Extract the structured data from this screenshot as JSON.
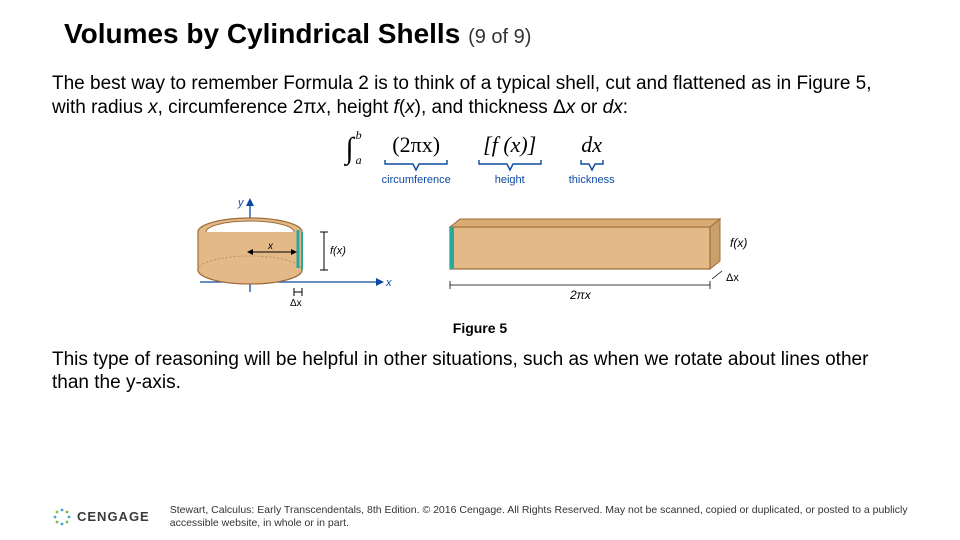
{
  "title": {
    "main": "Volumes by Cylindrical Shells",
    "sub": "(9 of 9)"
  },
  "para1_html": "The best way to remember Formula 2 is to think of a typical shell, cut and flattened as in Figure 5, with radius <span class='italic'>x</span>, circumference 2π<span class='italic'>x</span>, height <span class='italic'>f</span>(<span class='italic'>x</span>), and thickness Δ<span class='italic'>x</span> or <span class='italic'>dx</span>:",
  "formula": {
    "int_lower": "a",
    "int_upper": "b",
    "circ_expr": "(2πx)",
    "circ_label": "circumference",
    "height_expr": "[f (x)]",
    "height_label": "height",
    "thick_expr": "dx",
    "thick_label": "thickness",
    "brace_color": "#0b4aa2",
    "label_color": "#0b4aa2"
  },
  "figure": {
    "caption": "Figure 5",
    "shell": {
      "fill": "#e3b987",
      "stroke": "#9c6b3a",
      "axis_color": "#0b4aa2",
      "axis_y_label": "y",
      "axis_x_label": "x",
      "x_radius_label": "x",
      "fx_label": "f(x)",
      "dx_label": "Δx"
    },
    "slab": {
      "fill": "#e3b987",
      "stroke": "#9c6b3a",
      "width_label": "2πx",
      "height_label": "f(x)",
      "thick_label": "Δx"
    }
  },
  "para2": "This type of reasoning will be helpful in other situations, such as when we rotate about lines other than the y-axis.",
  "footer": {
    "brand": "CENGAGE",
    "copyright": "Stewart, Calculus: Early Transcendentals, 8th Edition. © 2016 Cengage. All Rights Reserved. May not be scanned, copied or duplicated, or posted to a publicly accessible website, in whole or in part.",
    "burst_color_a": "#4aa0d8",
    "burst_color_b": "#7fbf3f"
  },
  "colors": {
    "text": "#000000",
    "bg": "#ffffff"
  }
}
